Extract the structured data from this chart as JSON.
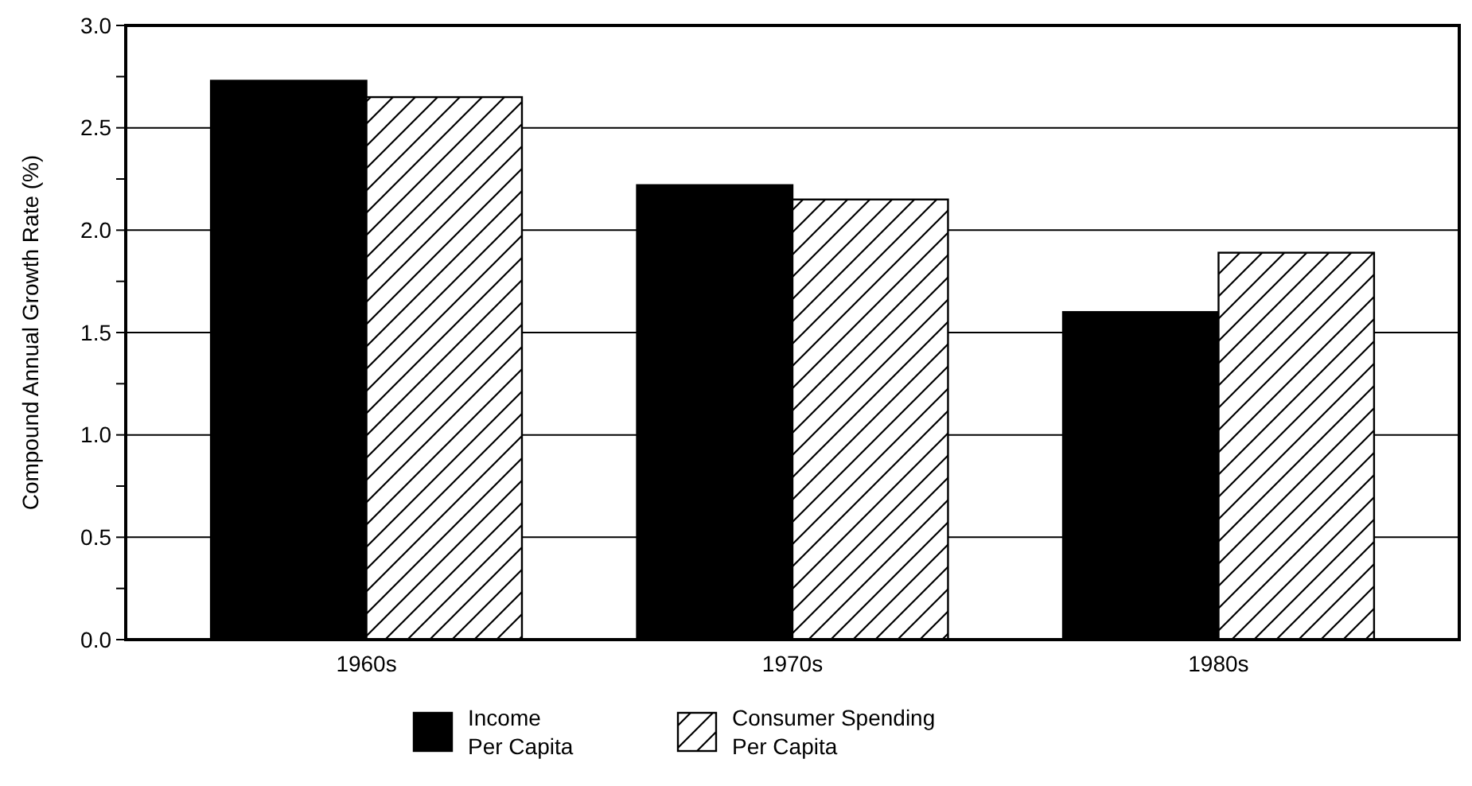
{
  "chart_data": {
    "type": "bar",
    "ylabel": "Compound Annual Growth Rate (%)",
    "categories": [
      "1960s",
      "1970s",
      "1980s"
    ],
    "series": [
      {
        "name": "Income Per Capita",
        "color": "#000000",
        "values": [
          2.73,
          2.22,
          1.6
        ]
      },
      {
        "name": "Consumer Spending Per Capita",
        "color": "#ffffff",
        "values": [
          2.65,
          2.15,
          1.89
        ]
      }
    ],
    "ylim": [
      0,
      3
    ],
    "yticks": [
      {
        "value": 0,
        "label": "0.0"
      },
      {
        "value": 0.25,
        "label": null
      },
      0.5,
      {
        "value": 0.75,
        "label": null
      },
      {
        "value": 1,
        "label": "1.0"
      },
      {
        "value": 1.25,
        "label": null
      },
      1.5,
      {
        "value": 1.75,
        "label": null
      },
      {
        "value": 2,
        "label": "2.0"
      },
      {
        "value": 2.25,
        "label": null
      },
      2.5,
      {
        "value": 2.75,
        "label": null
      },
      {
        "value": 3,
        "label": "3.0"
      }
    ],
    "grid": "y",
    "legend": "bottom"
  }
}
